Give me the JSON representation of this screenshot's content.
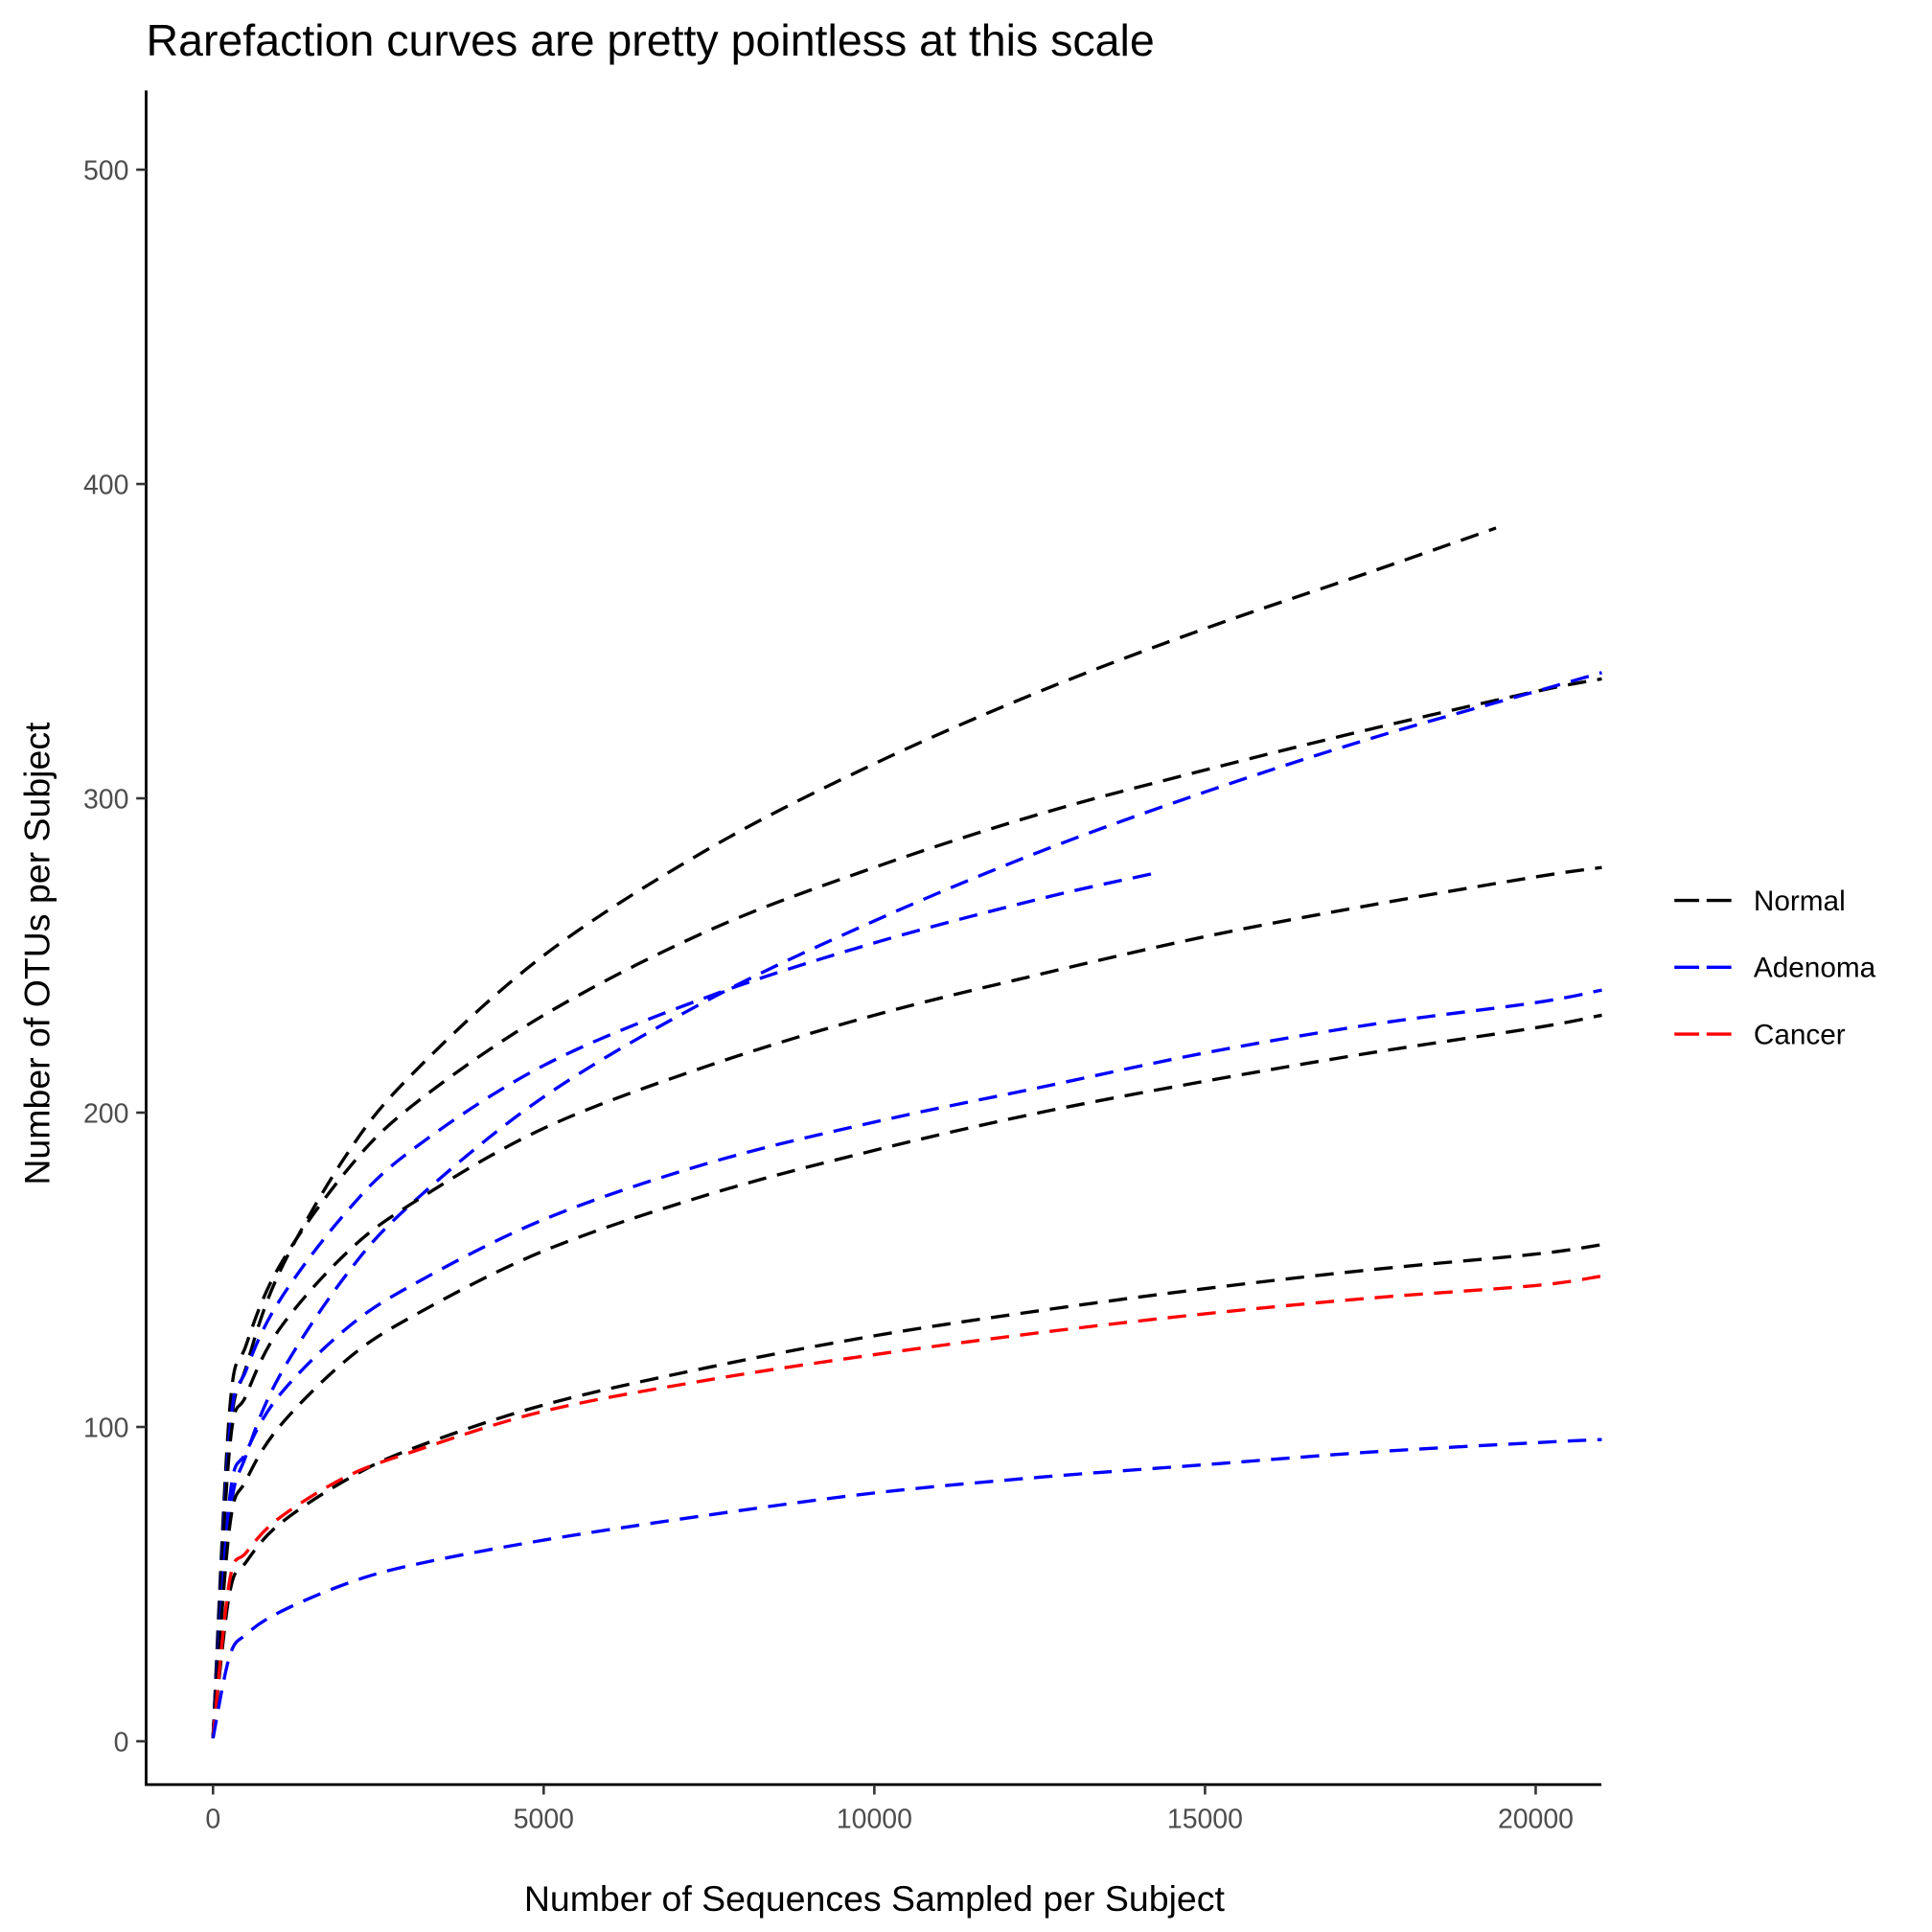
{
  "chart_data": {
    "type": "line",
    "title": "Rarefaction curves are pretty pointless at this scale",
    "xlabel": "Number of Sequences Sampled per Subject",
    "ylabel": "Number of OTUs per Subject",
    "xlim": [
      -1000,
      21000
    ],
    "ylim": [
      -25,
      525
    ],
    "x_ticks": [
      0,
      5000,
      10000,
      15000,
      20000
    ],
    "y_ticks": [
      0,
      100,
      200,
      300,
      400,
      500
    ],
    "grid": false,
    "line_style": "dashed",
    "legend": {
      "placement": "right",
      "entries": [
        {
          "label": "Normal",
          "color": "#000000"
        },
        {
          "label": "Adenoma",
          "color": "#0000ff"
        },
        {
          "label": "Cancer",
          "color": "#ff0000"
        }
      ]
    },
    "series": [
      {
        "group": "Normal",
        "x": [
          0,
          250,
          500,
          1000,
          2000,
          3000,
          5000,
          7500,
          10000,
          12500,
          15000,
          17500,
          19400
        ],
        "y": [
          1,
          96,
          119,
          149,
          186,
          212,
          250,
          284,
          311,
          334,
          354,
          372,
          386
        ]
      },
      {
        "group": "Normal",
        "x": [
          0,
          250,
          500,
          1000,
          2000,
          3000,
          5000,
          7500,
          10000,
          12500,
          15000,
          17500,
          20000,
          21000
        ],
        "y": [
          1,
          105,
          126,
          151,
          181,
          202,
          231,
          258,
          278,
          295,
          309,
          322,
          334,
          338
        ]
      },
      {
        "group": "Adenoma",
        "x": [
          0,
          250,
          500,
          1000,
          2000,
          3000,
          5000,
          7500,
          10000,
          12500,
          15000,
          17500,
          20000,
          21000
        ],
        "y": [
          1,
          71,
          91,
          116,
          148,
          171,
          205,
          236,
          261,
          283,
          302,
          319,
          334,
          340
        ]
      },
      {
        "group": "Adenoma",
        "x": [
          0,
          250,
          500,
          1000,
          2000,
          3000,
          5000,
          7500,
          10000,
          12500,
          14200
        ],
        "y": [
          1,
          98,
          118,
          140,
          168,
          188,
          215,
          237,
          254,
          268,
          276
        ]
      },
      {
        "group": "Normal",
        "x": [
          0,
          250,
          500,
          1000,
          2000,
          3000,
          5000,
          7500,
          10000,
          12500,
          15000,
          17500,
          20000,
          21000
        ],
        "y": [
          1,
          93,
          110,
          131,
          155,
          171,
          195,
          215,
          231,
          244,
          256,
          266,
          275,
          278
        ]
      },
      {
        "group": "Adenoma",
        "x": [
          0,
          250,
          500,
          1000,
          2000,
          3000,
          5000,
          7500,
          10000,
          12500,
          15000,
          17500,
          20000,
          21000
        ],
        "y": [
          1,
          77,
          92,
          110,
          131,
          145,
          166,
          184,
          197,
          208,
          219,
          228,
          235,
          239
        ]
      },
      {
        "group": "Normal",
        "x": [
          0,
          250,
          500,
          1000,
          2000,
          3000,
          5000,
          7500,
          10000,
          12500,
          15000,
          17500,
          20000,
          21000
        ],
        "y": [
          1,
          68,
          83,
          100,
          121,
          135,
          156,
          174,
          188,
          200,
          210,
          219,
          227,
          231
        ]
      },
      {
        "group": "Normal",
        "x": [
          0,
          250,
          500,
          1000,
          2000,
          3000,
          5000,
          7500,
          10000,
          12500,
          15000,
          17500,
          20000,
          21000
        ],
        "y": [
          1,
          47,
          57,
          69,
          83,
          93,
          107,
          119,
          129,
          137,
          144,
          150,
          155,
          158
        ]
      },
      {
        "group": "Cancer",
        "x": [
          0,
          250,
          500,
          1000,
          2000,
          3000,
          5000,
          7500,
          10000,
          12500,
          15000,
          17500,
          20000,
          21000
        ],
        "y": [
          1,
          51,
          60,
          71,
          84,
          92,
          105,
          115,
          123,
          130,
          136,
          141,
          145,
          148
        ]
      },
      {
        "group": "Adenoma",
        "x": [
          0,
          250,
          500,
          1000,
          2000,
          3000,
          5000,
          7500,
          10000,
          12500,
          15000,
          17500,
          20000,
          21000
        ],
        "y": [
          1,
          27,
          34,
          41,
          50,
          56,
          64,
          72,
          79,
          84,
          88,
          92,
          95,
          96
        ]
      }
    ]
  }
}
